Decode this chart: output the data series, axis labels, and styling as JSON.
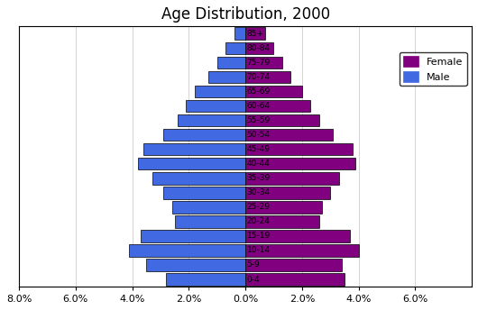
{
  "title": "Age Distribution, 2000",
  "age_groups": [
    "0-4",
    "5-9",
    "10-14",
    "15-19",
    "20-24",
    "25-29",
    "30-34",
    "35-39",
    "40-44",
    "45-49",
    "50-54",
    "55-59",
    "60-64",
    "65-69",
    "70-74",
    "75-79",
    "80-84",
    "85+"
  ],
  "female": [
    3.5,
    3.4,
    4.0,
    3.7,
    2.6,
    2.7,
    3.0,
    3.3,
    3.9,
    3.8,
    3.1,
    2.6,
    2.3,
    2.0,
    1.6,
    1.3,
    1.0,
    0.7
  ],
  "male": [
    2.8,
    3.5,
    4.1,
    3.7,
    2.5,
    2.6,
    2.9,
    3.3,
    3.8,
    3.6,
    2.9,
    2.4,
    2.1,
    1.8,
    1.3,
    1.0,
    0.7,
    0.4
  ],
  "female_color": "#800080",
  "male_color": "#4169e1",
  "xlim": 8.0,
  "background_color": "#ffffff",
  "legend_female": "Female",
  "legend_male": "Male",
  "bar_height": 0.85
}
